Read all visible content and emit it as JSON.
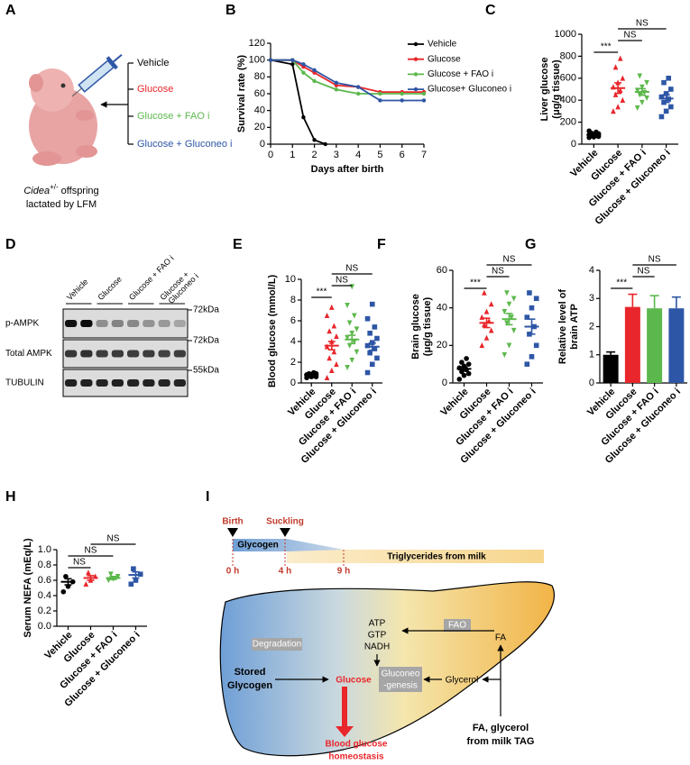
{
  "panel_labels": [
    "A",
    "B",
    "C",
    "D",
    "E",
    "F",
    "G",
    "H",
    "I"
  ],
  "panel_a": {
    "treatments": [
      "Vehicle",
      "Glucose",
      "Glucose + FAO i",
      "Glucose + Gluconeo i"
    ],
    "colors": [
      "#000000",
      "#e8262b",
      "#5cb84c",
      "#2e56a6"
    ],
    "caption": {
      "gene": "Cidea",
      "genotype": "+/-",
      "offspring": "offspring",
      "line2": "lactated by LFM"
    }
  },
  "panel_d": {
    "lanes": [
      [
        "Vehicle"
      ],
      [
        "Glucose"
      ],
      [
        "Glucose + FAO i"
      ],
      [
        "Glucose +",
        "Gluconeo i"
      ]
    ],
    "rows": [
      "p-AMPK",
      "Total AMPK",
      "TUBULIN"
    ],
    "sizes": [
      "72kDa",
      "72kDa",
      "55kDa"
    ]
  },
  "panel_i": {
    "events": [
      "Birth",
      "Suckling"
    ],
    "times": [
      "0 h",
      "4 h",
      "9 h"
    ],
    "phases": [
      "Glycogen",
      "Triglycerides from milk"
    ],
    "energy": [
      "ATP",
      "GTP",
      "NADH"
    ],
    "fao": "FAO",
    "fa": "FA",
    "degradation": "Degradation",
    "stored": [
      "Stored",
      "Glycogen"
    ],
    "glucose": "Glucose",
    "gluconeo": [
      "Gluconeo",
      "-genesis"
    ],
    "glycerol": "Glycerol",
    "source": [
      "FA, glycerol",
      "from milk TAG"
    ],
    "output": [
      "Blood glucose",
      "homeostasis"
    ]
  },
  "chart_data": [
    {
      "type": "line",
      "ylabel": [
        "Survival rate (%)"
      ],
      "xlabel": "Days after birth",
      "xlim": [
        0,
        7
      ],
      "xticks": [
        0,
        1,
        2,
        3,
        4,
        5,
        6,
        7
      ],
      "ylim": [
        0,
        120
      ],
      "yticks": [
        0,
        20,
        40,
        60,
        80,
        100,
        120
      ],
      "legend": "right",
      "series": [
        {
          "name": "Vehicle",
          "color": "#000000",
          "x": [
            0,
            1,
            1.5,
            2,
            2.5
          ],
          "values": [
            100,
            95,
            32,
            5,
            0
          ]
        },
        {
          "name": "Glucose",
          "color": "#e8262b",
          "x": [
            0,
            1,
            1.5,
            2,
            3,
            4,
            5,
            6,
            7
          ],
          "values": [
            100,
            100,
            92,
            85,
            70,
            68,
            62,
            62,
            62
          ]
        },
        {
          "name": "Glucose + FAO i",
          "color": "#5cb84c",
          "x": [
            0,
            1,
            1.5,
            2,
            3,
            4,
            5,
            6,
            7
          ],
          "values": [
            100,
            100,
            85,
            75,
            65,
            60,
            60,
            60,
            60
          ]
        },
        {
          "name": "Glucose+ Gluconeo i",
          "color": "#2e56a6",
          "x": [
            0,
            1,
            1.5,
            2,
            3,
            4,
            5,
            6,
            7
          ],
          "values": [
            100,
            100,
            95,
            88,
            73,
            68,
            52,
            52,
            52
          ]
        }
      ]
    },
    {
      "type": "dotplot",
      "ylabel": [
        "Liver glucose",
        "(μg/g tissue)"
      ],
      "categories": [
        "Vehicle",
        "Glucose",
        "Glucose + FAO i",
        "Glucose + Gluconeo i"
      ],
      "colors": [
        "#000000",
        "#e8262b",
        "#5cb84c",
        "#2e56a6"
      ],
      "markers": [
        "circle",
        "triangle-up",
        "triangle-down",
        "square"
      ],
      "ylim": [
        0,
        1000
      ],
      "yticks": [
        0,
        200,
        400,
        600,
        800,
        1000
      ],
      "points": [
        [
          60,
          65,
          70,
          75,
          80,
          85,
          90,
          95,
          100,
          110,
          120
        ],
        [
          300,
          340,
          400,
          450,
          490,
          520,
          560,
          600,
          700,
          780
        ],
        [
          330,
          380,
          420,
          450,
          470,
          490,
          520,
          560,
          620
        ],
        [
          250,
          300,
          340,
          380,
          410,
          430,
          460,
          500,
          560,
          600
        ]
      ],
      "means": [
        85,
        510,
        475,
        415
      ],
      "sems": [
        10,
        48,
        30,
        35
      ],
      "significance": [
        {
          "from": "Vehicle",
          "to": "Glucose",
          "label": "***"
        },
        {
          "from": "Glucose",
          "to": "Glucose + FAO i",
          "label": "NS"
        },
        {
          "from": "Glucose",
          "to": "Glucose + Gluconeo i",
          "label": "NS"
        }
      ]
    },
    {
      "type": "dotplot",
      "ylabel": [
        "Blood glucose (mmol/L)"
      ],
      "categories": [
        "Vehicle",
        "Glucose",
        "Glucose + FAO i",
        "Glucose + Gluconeo i"
      ],
      "colors": [
        "#000000",
        "#e8262b",
        "#5cb84c",
        "#2e56a6"
      ],
      "markers": [
        "circle",
        "triangle-up",
        "triangle-down",
        "square"
      ],
      "ylim": [
        0,
        10
      ],
      "yticks": [
        0,
        2,
        4,
        6,
        8,
        10
      ],
      "points": [
        [
          0.5,
          0.6,
          0.6,
          0.7,
          0.7,
          0.8,
          0.8,
          0.9,
          0.9,
          1.0
        ],
        [
          0.5,
          1.2,
          1.8,
          2.4,
          3.0,
          3.5,
          4.0,
          4.5,
          5.0,
          5.5,
          6.5,
          7.3
        ],
        [
          1.5,
          2.2,
          3.0,
          3.6,
          4.0,
          4.4,
          4.8,
          5.2,
          5.8,
          6.5,
          7.5,
          9.3
        ],
        [
          1.0,
          1.8,
          2.4,
          2.9,
          3.3,
          3.6,
          3.9,
          4.3,
          4.8,
          5.4,
          6.2,
          7.6
        ]
      ],
      "means": [
        0.75,
        3.6,
        4.2,
        3.5
      ],
      "sems": [
        0.05,
        0.4,
        0.4,
        0.35
      ],
      "significance": [
        {
          "from": "Vehicle",
          "to": "Glucose",
          "label": "***"
        },
        {
          "from": "Glucose",
          "to": "Glucose + FAO i",
          "label": "NS"
        },
        {
          "from": "Glucose",
          "to": "Glucose + Gluconeo i",
          "label": "NS"
        }
      ]
    },
    {
      "type": "dotplot",
      "ylabel": [
        "Brain glucose",
        "(μg/g tissue)"
      ],
      "categories": [
        "Vehicle",
        "Glucose",
        "Glucose + FAO i",
        "Glucose + Gluconeo i"
      ],
      "colors": [
        "#000000",
        "#e8262b",
        "#5cb84c",
        "#2e56a6"
      ],
      "markers": [
        "circle",
        "triangle-up",
        "triangle-down",
        "square"
      ],
      "ylim": [
        0,
        60
      ],
      "yticks": [
        0,
        20,
        40,
        60
      ],
      "points": [
        [
          2,
          4,
          5,
          6,
          7,
          8,
          9,
          10,
          11,
          13
        ],
        [
          20,
          24,
          28,
          31,
          33,
          35,
          38,
          42,
          48
        ],
        [
          15,
          20,
          28,
          32,
          35,
          38,
          42,
          45,
          48
        ],
        [
          10,
          14,
          20,
          26,
          30,
          35,
          40,
          45,
          48
        ]
      ],
      "means": [
        7.5,
        32,
        34,
        30
      ],
      "sems": [
        1,
        2.5,
        3,
        4
      ],
      "significance": [
        {
          "from": "Vehicle",
          "to": "Glucose",
          "label": "***"
        },
        {
          "from": "Glucose",
          "to": "Glucose + FAO i",
          "label": "NS"
        },
        {
          "from": "Glucose",
          "to": "Glucose + Gluconeo i",
          "label": "NS"
        }
      ]
    },
    {
      "type": "bar",
      "ylabel": [
        "Relative level of",
        "brain ATP"
      ],
      "categories": [
        "Vehicle",
        "Glucose",
        "Glucose + FAO i",
        "Glucose + Gluconeo i"
      ],
      "colors": [
        "#000000",
        "#e8262b",
        "#5cb84c",
        "#2e56a6"
      ],
      "ylim": [
        0,
        4
      ],
      "yticks": [
        0,
        1,
        2,
        3,
        4
      ],
      "values": [
        1,
        2.7,
        2.65,
        2.65
      ],
      "errors": [
        0.1,
        0.45,
        0.45,
        0.4
      ],
      "significance": [
        {
          "from": "Vehicle",
          "to": "Glucose",
          "label": "***"
        },
        {
          "from": "Glucose",
          "to": "Glucose + FAO i",
          "label": "NS"
        },
        {
          "from": "Glucose",
          "to": "Glucose + Gluconeo i",
          "label": "NS"
        }
      ]
    },
    {
      "type": "dotplot",
      "ylabel": [
        "Serum NEFA (mEq/L)"
      ],
      "categories": [
        "Vehicle",
        "Glucose",
        "Glucose + FAO i",
        "Glucose + Gluconeo i"
      ],
      "colors": [
        "#000000",
        "#e8262b",
        "#5cb84c",
        "#2e56a6"
      ],
      "markers": [
        "circle",
        "triangle-up",
        "triangle-down",
        "square"
      ],
      "ylim": [
        0,
        1.0
      ],
      "yticks": [
        {
          "value": 0,
          "label": "0.0"
        },
        0.2,
        0.4,
        0.6,
        0.8,
        {
          "value": 1.0,
          "label": "1.0"
        }
      ],
      "points": [
        [
          0.45,
          0.52,
          0.58,
          0.65
        ],
        [
          0.55,
          0.6,
          0.65,
          0.7
        ],
        [
          0.6,
          0.62,
          0.65,
          0.68
        ],
        [
          0.55,
          0.6,
          0.68,
          0.75
        ]
      ],
      "means": [
        0.58,
        0.63,
        0.63,
        0.67
      ],
      "sems": [
        0.04,
        0.03,
        0.02,
        0.04
      ],
      "significance": [
        {
          "from": "Vehicle",
          "to": "Glucose",
          "label": "NS"
        },
        {
          "from": "Vehicle",
          "to": "Glucose + FAO i",
          "label": "NS"
        },
        {
          "from": "Glucose",
          "to": "Glucose + Gluconeo i",
          "label": "NS"
        }
      ]
    }
  ]
}
